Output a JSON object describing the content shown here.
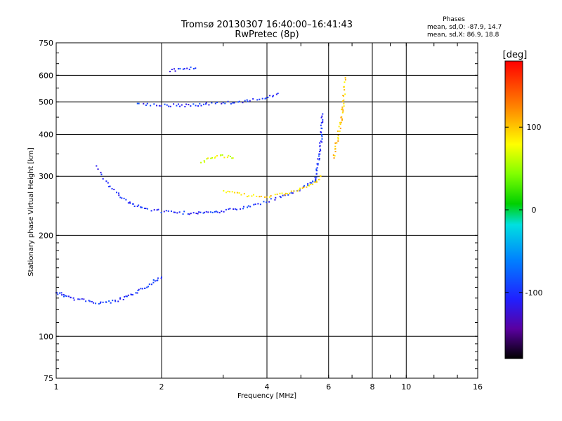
{
  "title": "Tromsø 20130307 16:40:00–16:41:43",
  "subtitle": "RwPretec (8p)",
  "stats": {
    "header": "Phases",
    "line_o": "mean, sd,O: -87.9, 14.7",
    "line_x": "mean, sd,X: 86.9, 18.8"
  },
  "colorbar": {
    "unit_label": "[deg]",
    "tick_labels": [
      "100",
      "0",
      "-100"
    ],
    "tick_values": [
      100,
      0,
      -100
    ],
    "range": [
      -180,
      180
    ]
  },
  "chart_data": {
    "type": "scatter",
    "xlabel": "Frequency [MHz]",
    "ylabel": "Stationary phase Virtual Height [km]",
    "x_scale": "log",
    "y_scale": "log",
    "xlim": [
      1,
      16
    ],
    "ylim": [
      75,
      750
    ],
    "x_ticks": [
      1,
      2,
      4,
      6,
      8,
      10,
      16
    ],
    "x_tick_labels": [
      "1",
      "2",
      "4",
      "6",
      "8",
      "10",
      "16"
    ],
    "y_ticks": [
      75,
      100,
      200,
      300,
      400,
      500,
      600,
      750
    ],
    "y_tick_labels": [
      "75",
      "100",
      "200",
      "300",
      "400",
      "500",
      "600",
      "750"
    ],
    "grid": true,
    "color_by": "phase (deg)",
    "traces": [
      {
        "x": [
          1.0,
          1.05,
          1.1,
          1.2,
          1.3,
          1.4,
          1.5,
          1.6,
          1.7,
          1.8,
          1.9,
          2.0
        ],
        "y": [
          135,
          133,
          130,
          128,
          126,
          126,
          128,
          131,
          135,
          140,
          146,
          150
        ],
        "phase": -100
      },
      {
        "x": [
          1.3,
          1.4,
          1.5,
          1.6,
          1.7,
          1.8,
          2.0,
          2.2,
          2.4,
          2.6,
          2.8,
          3.0,
          3.3,
          3.6,
          4.0,
          4.4,
          4.8,
          5.2,
          5.5
        ],
        "y": [
          320,
          285,
          265,
          252,
          245,
          240,
          236,
          234,
          233,
          233,
          234,
          236,
          240,
          245,
          252,
          260,
          270,
          282,
          292
        ],
        "phase": -100
      },
      {
        "x": [
          3.0,
          3.3,
          3.6,
          4.0,
          4.4,
          4.8,
          5.2,
          5.5,
          5.7
        ],
        "y": [
          272,
          266,
          262,
          262,
          265,
          270,
          278,
          288,
          300
        ],
        "phase": 95
      },
      {
        "x": [
          5.5,
          5.55,
          5.6,
          5.65,
          5.7,
          5.72,
          5.75,
          5.77
        ],
        "y": [
          290,
          310,
          330,
          350,
          375,
          400,
          430,
          460
        ],
        "phase": -100
      },
      {
        "x": [
          6.2,
          6.3,
          6.4,
          6.5,
          6.55,
          6.6,
          6.65,
          6.7
        ],
        "y": [
          340,
          370,
          400,
          430,
          460,
          490,
          530,
          590
        ],
        "phase": 100
      },
      {
        "x": [
          1.7,
          1.9,
          2.1,
          2.3,
          2.5,
          2.7,
          3.0,
          3.3,
          3.6,
          4.0,
          4.3
        ],
        "y": [
          495,
          490,
          488,
          488,
          490,
          493,
          496,
          500,
          505,
          515,
          530
        ],
        "phase": -100
      },
      {
        "x": [
          2.6,
          2.8,
          3.0,
          3.2
        ],
        "y": [
          330,
          340,
          345,
          340
        ],
        "phase": 70
      },
      {
        "x": [
          2.1,
          2.3,
          2.5
        ],
        "y": [
          620,
          625,
          630
        ],
        "phase": -100
      }
    ]
  }
}
